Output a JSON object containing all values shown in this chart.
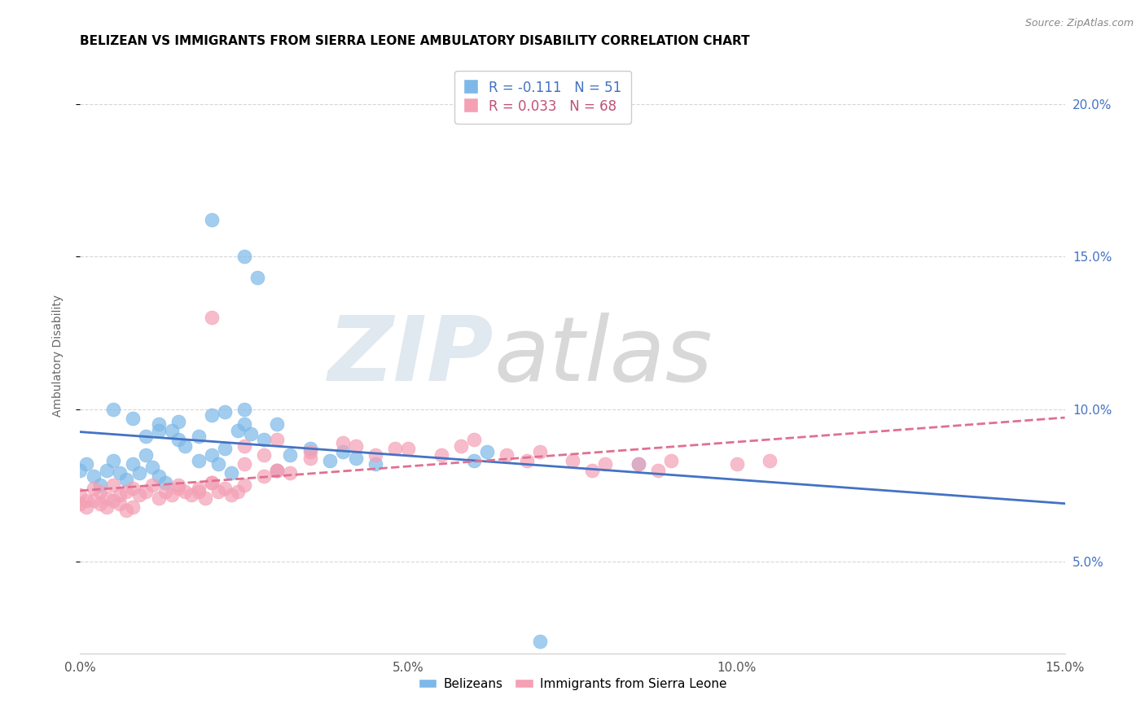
{
  "title": "BELIZEAN VS IMMIGRANTS FROM SIERRA LEONE AMBULATORY DISABILITY CORRELATION CHART",
  "source": "Source: ZipAtlas.com",
  "ylabel": "Ambulatory Disability",
  "xlim": [
    0.0,
    0.15
  ],
  "ylim": [
    0.02,
    0.215
  ],
  "xticks": [
    0.0,
    0.05,
    0.1,
    0.15
  ],
  "xticklabels": [
    "0.0%",
    "5.0%",
    "10.0%",
    "15.0%"
  ],
  "yticks_right": [
    0.05,
    0.1,
    0.15,
    0.2
  ],
  "yticklabels_right": [
    "5.0%",
    "10.0%",
    "15.0%",
    "20.0%"
  ],
  "belizean_color": "#7db8e8",
  "sierra_leone_color": "#f4a0b5",
  "belizean_R": -0.111,
  "belizean_N": 51,
  "sierra_leone_R": 0.033,
  "sierra_leone_N": 68,
  "legend_label1": "Belizeans",
  "legend_label2": "Immigrants from Sierra Leone",
  "bx": [
    0.0,
    0.001,
    0.002,
    0.003,
    0.004,
    0.005,
    0.006,
    0.007,
    0.008,
    0.009,
    0.01,
    0.011,
    0.012,
    0.013,
    0.015,
    0.016,
    0.018,
    0.02,
    0.021,
    0.022,
    0.023,
    0.024,
    0.025,
    0.026,
    0.027,
    0.028,
    0.03,
    0.032,
    0.035,
    0.038,
    0.02,
    0.025,
    0.03,
    0.015,
    0.018,
    0.022,
    0.01,
    0.012,
    0.014,
    0.005,
    0.008,
    0.012,
    0.06,
    0.062,
    0.085,
    0.02,
    0.025,
    0.04,
    0.042,
    0.045,
    0.07
  ],
  "by": [
    0.08,
    0.082,
    0.078,
    0.075,
    0.08,
    0.083,
    0.079,
    0.077,
    0.082,
    0.079,
    0.085,
    0.081,
    0.078,
    0.076,
    0.09,
    0.088,
    0.083,
    0.085,
    0.082,
    0.087,
    0.079,
    0.093,
    0.095,
    0.092,
    0.143,
    0.09,
    0.08,
    0.085,
    0.087,
    0.083,
    0.098,
    0.1,
    0.095,
    0.096,
    0.091,
    0.099,
    0.091,
    0.095,
    0.093,
    0.1,
    0.097,
    0.093,
    0.083,
    0.086,
    0.082,
    0.162,
    0.15,
    0.086,
    0.084,
    0.082,
    0.024
  ],
  "sx": [
    0.0,
    0.001,
    0.002,
    0.003,
    0.004,
    0.005,
    0.006,
    0.007,
    0.008,
    0.009,
    0.01,
    0.011,
    0.012,
    0.013,
    0.014,
    0.015,
    0.016,
    0.017,
    0.018,
    0.019,
    0.02,
    0.021,
    0.022,
    0.023,
    0.024,
    0.025,
    0.0,
    0.001,
    0.002,
    0.003,
    0.004,
    0.005,
    0.006,
    0.007,
    0.008,
    0.015,
    0.018,
    0.02,
    0.025,
    0.028,
    0.03,
    0.032,
    0.035,
    0.03,
    0.035,
    0.04,
    0.042,
    0.045,
    0.048,
    0.05,
    0.055,
    0.058,
    0.06,
    0.065,
    0.068,
    0.07,
    0.075,
    0.078,
    0.08,
    0.085,
    0.088,
    0.09,
    0.1,
    0.105,
    0.02,
    0.025,
    0.028,
    0.03
  ],
  "sy": [
    0.072,
    0.07,
    0.074,
    0.073,
    0.071,
    0.075,
    0.072,
    0.073,
    0.074,
    0.072,
    0.073,
    0.075,
    0.071,
    0.073,
    0.072,
    0.074,
    0.073,
    0.072,
    0.074,
    0.071,
    0.076,
    0.073,
    0.074,
    0.072,
    0.073,
    0.075,
    0.069,
    0.068,
    0.07,
    0.069,
    0.068,
    0.07,
    0.069,
    0.067,
    0.068,
    0.075,
    0.073,
    0.076,
    0.082,
    0.078,
    0.08,
    0.079,
    0.084,
    0.09,
    0.086,
    0.089,
    0.088,
    0.085,
    0.087,
    0.087,
    0.085,
    0.088,
    0.09,
    0.085,
    0.083,
    0.086,
    0.083,
    0.08,
    0.082,
    0.082,
    0.08,
    0.083,
    0.082,
    0.083,
    0.13,
    0.088,
    0.085,
    0.08
  ]
}
